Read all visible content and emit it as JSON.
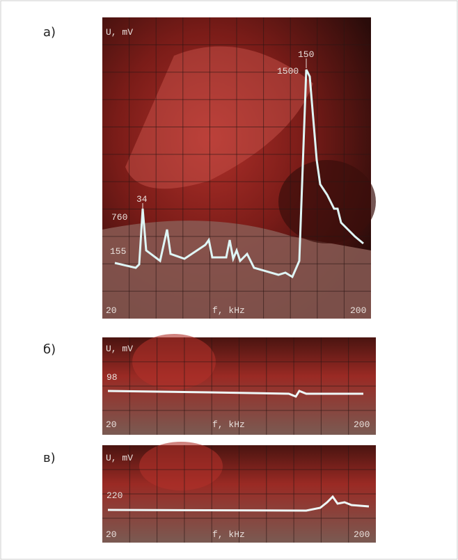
{
  "panels": [
    {
      "label": "а)",
      "y_label": "U, mV",
      "x_label": "f, kHz",
      "x_start": "20",
      "x_end": "200",
      "annotations": [
        "34",
        "760",
        "150",
        "1500",
        "155"
      ]
    },
    {
      "label": "б)",
      "y_label": "U, mV",
      "x_label": "f, kHz",
      "x_start": "20",
      "x_end": "200",
      "annotations": [
        "98"
      ]
    },
    {
      "label": "в)",
      "y_label": "U, mV",
      "x_label": "f, kHz",
      "x_start": "20",
      "x_end": "200",
      "annotations": [
        "220"
      ]
    }
  ]
}
